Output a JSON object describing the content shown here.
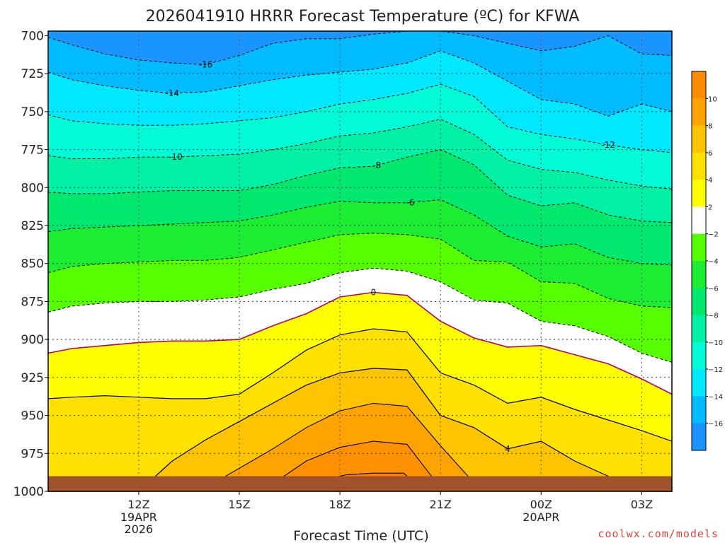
{
  "chart_data": {
    "type": "heatmap",
    "title": "2026041910 HRRR Forecast Temperature (ºC) for KFWA",
    "xlabel": "Forecast Time (UTC)",
    "ylabel": "",
    "x_hours": [
      9.3,
      10,
      11,
      12,
      13,
      14,
      15,
      16,
      17,
      18,
      19,
      20,
      21,
      22,
      23,
      24,
      25,
      26,
      27,
      27.9
    ],
    "x_ticks": [
      {
        "hour": 12,
        "label": "12Z",
        "sub": [
          "19APR",
          "2026"
        ]
      },
      {
        "hour": 15,
        "label": "15Z",
        "sub": []
      },
      {
        "hour": 18,
        "label": "18Z",
        "sub": []
      },
      {
        "hour": 21,
        "label": "21Z",
        "sub": []
      },
      {
        "hour": 24,
        "label": "00Z",
        "sub": [
          "20APR"
        ]
      },
      {
        "hour": 27,
        "label": "03Z",
        "sub": []
      }
    ],
    "y_ticks": [
      700,
      725,
      750,
      775,
      800,
      825,
      850,
      875,
      900,
      925,
      950,
      975,
      1000
    ],
    "y_range_hpa": [
      697,
      1000
    ],
    "surface_pressure_hpa": 990,
    "grid": "dotted",
    "isotherms": [
      {
        "temp": -16,
        "label": "-16",
        "label_hour": 14,
        "p": [
          701,
          706,
          712,
          716,
          718,
          719,
          713,
          705,
          702,
          702,
          699,
          697,
          695,
          700,
          705,
          710,
          707,
          700,
          712,
          713
        ]
      },
      {
        "temp": -14,
        "label": "-14",
        "label_hour": 13,
        "p": [
          724,
          729,
          733,
          736,
          738,
          737,
          733,
          729,
          726,
          724,
          722,
          718,
          710,
          718,
          730,
          742,
          745,
          753,
          745,
          750
        ]
      },
      {
        "temp": -12,
        "label": "-12",
        "label_hour": 26,
        "p": [
          752,
          756,
          758,
          759,
          759,
          758,
          756,
          754,
          750,
          745,
          742,
          738,
          732,
          740,
          760,
          765,
          768,
          772,
          775,
          777
        ]
      },
      {
        "temp": -10,
        "label": "-10",
        "label_hour": 13.1,
        "p": [
          779,
          781,
          781,
          780,
          780,
          779,
          778,
          775,
          771,
          766,
          764,
          760,
          755,
          765,
          782,
          788,
          790,
          795,
          799,
          801
        ]
      },
      {
        "temp": -8,
        "label": "-8",
        "label_hour": 19.1,
        "p": [
          803,
          804,
          804,
          803,
          802,
          802,
          802,
          798,
          792,
          787,
          786,
          780,
          775,
          785,
          805,
          812,
          810,
          818,
          822,
          823
        ]
      },
      {
        "temp": -6,
        "label": "-6",
        "label_hour": 20.1,
        "p": [
          829,
          827,
          826,
          825,
          824,
          823,
          822,
          818,
          813,
          809,
          810,
          810,
          808,
          818,
          832,
          839,
          837,
          846,
          850,
          851
        ]
      },
      {
        "temp": -4,
        "label": "",
        "label_hour": 0,
        "p": [
          856,
          852,
          850,
          849,
          848,
          848,
          846,
          841,
          836,
          831,
          830,
          831,
          834,
          848,
          849,
          862,
          863,
          873,
          878,
          879
        ]
      },
      {
        "temp": -2,
        "label": "",
        "label_hour": 0,
        "p": [
          882,
          878,
          876,
          875,
          875,
          874,
          872,
          867,
          863,
          856,
          853,
          855,
          862,
          874,
          876,
          888,
          891,
          898,
          909,
          915
        ]
      },
      {
        "temp": 0,
        "label": "0",
        "label_hour": 19,
        "p": [
          909,
          906,
          904,
          902,
          901,
          901,
          900,
          891,
          883,
          872,
          869,
          871,
          888,
          899,
          905,
          904,
          910,
          916,
          926,
          936
        ]
      },
      {
        "temp": 2,
        "label": "",
        "label_hour": 0,
        "p": [
          939,
          938,
          937,
          938,
          939,
          939,
          936,
          922,
          907,
          897,
          893,
          895,
          922,
          930,
          942,
          938,
          946,
          953,
          960,
          967
        ]
      },
      {
        "temp": 4,
        "label": "4",
        "label_hour": 23,
        "p": [
          1005,
          1005,
          1005,
          1000,
          980,
          966,
          954,
          942,
          930,
          922,
          919,
          920,
          950,
          958,
          972,
          967,
          980,
          990,
          1005,
          1005
        ]
      }
    ],
    "warm_cores": [
      {
        "temp": 6,
        "label": "",
        "pts": [
          [
            14.2,
            995
          ],
          [
            16,
            972
          ],
          [
            17,
            958
          ],
          [
            18,
            947
          ],
          [
            19,
            942
          ],
          [
            20,
            944
          ],
          [
            21,
            970
          ],
          [
            21.9,
            992
          ]
        ]
      },
      {
        "temp": 8,
        "label": "",
        "pts": [
          [
            16,
            995
          ],
          [
            17,
            980
          ],
          [
            18,
            971
          ],
          [
            19,
            967
          ],
          [
            20,
            969
          ],
          [
            20.8,
            992
          ]
        ]
      },
      {
        "temp": 10,
        "label": "",
        "pts": [
          [
            17.6,
            992
          ],
          [
            18.2,
            989
          ],
          [
            19,
            988
          ],
          [
            19.9,
            988
          ],
          [
            20.1,
            992
          ]
        ]
      }
    ],
    "colorbar": {
      "labels": [
        "10",
        "8",
        "6",
        "4",
        "2",
        "−2",
        "−4",
        "−6",
        "−8",
        "−10",
        "−12",
        "−14",
        "−16"
      ],
      "bands": [
        {
          "color": "#ff8c00"
        },
        {
          "color": "#ffa300"
        },
        {
          "color": "#ffc400"
        },
        {
          "color": "#ffe100"
        },
        {
          "color": "#ffff00"
        },
        {
          "color": "#ffffff"
        },
        {
          "color": "#55ff00"
        },
        {
          "color": "#1bee32"
        },
        {
          "color": "#00e96e"
        },
        {
          "color": "#00f0a4"
        },
        {
          "color": "#00fbd6"
        },
        {
          "color": "#00e8ff"
        },
        {
          "color": "#00bbff"
        },
        {
          "color": "#1a94ff"
        }
      ]
    }
  },
  "credit": "coolwx.com/models"
}
